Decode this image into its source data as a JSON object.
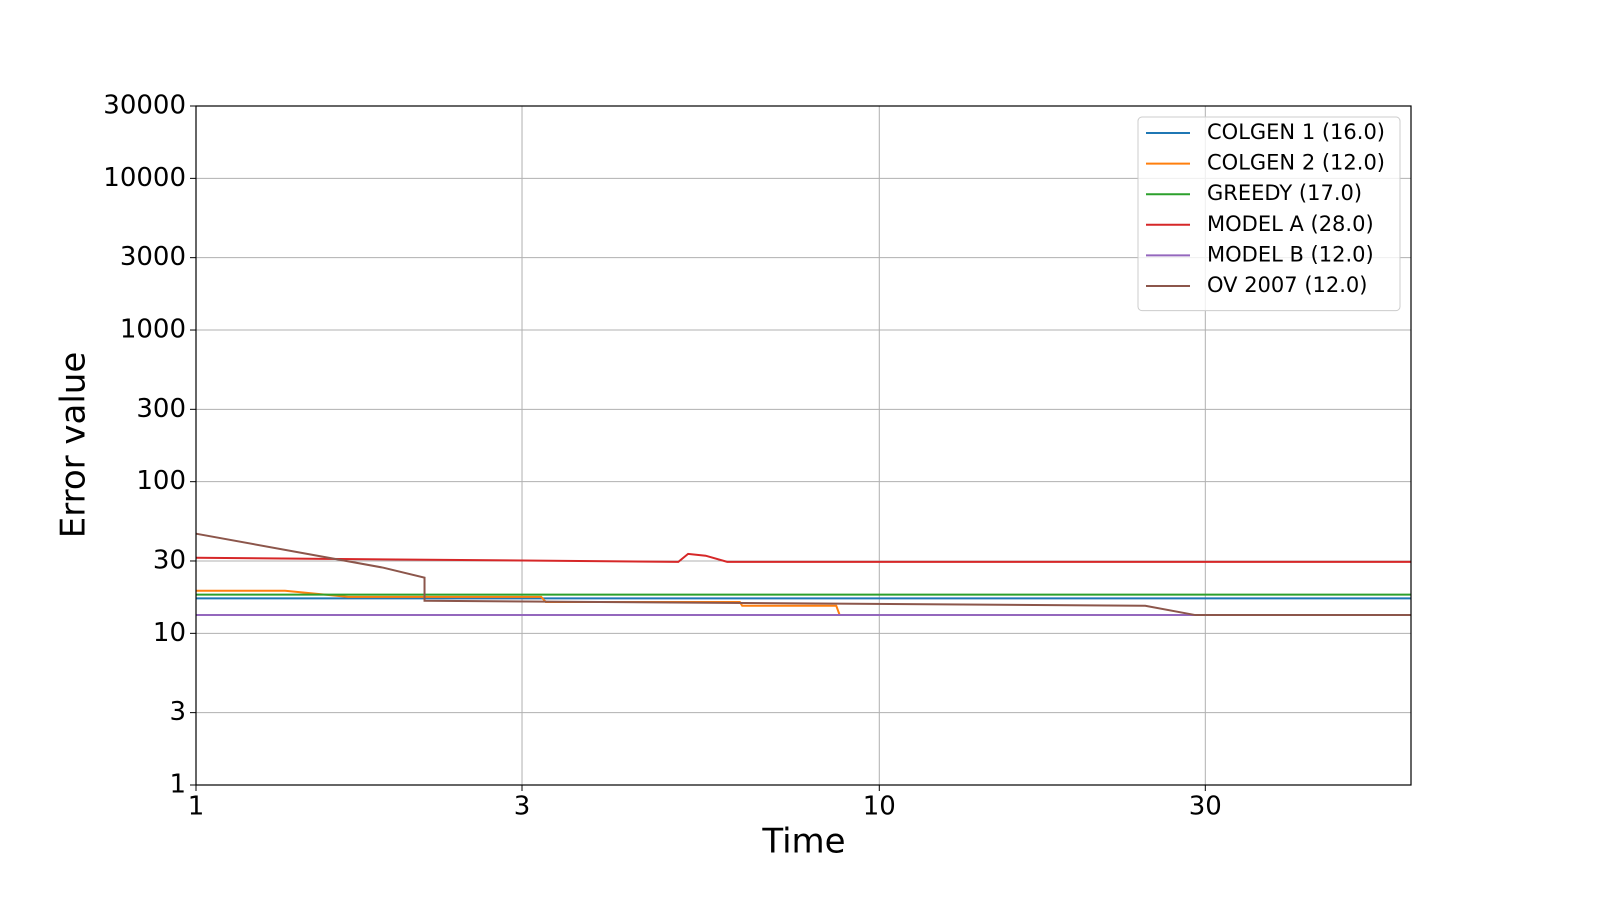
{
  "chart_data": {
    "type": "line",
    "xlabel": "Time",
    "ylabel": "Error value",
    "xscale": "log",
    "yscale": "log",
    "xlim": [
      1,
      60
    ],
    "ylim": [
      1,
      30000
    ],
    "xticks": [
      1,
      3,
      10,
      30
    ],
    "yticks": [
      1,
      3,
      10,
      30,
      100,
      300,
      1000,
      3000,
      10000,
      30000
    ],
    "grid": true,
    "legend": "upper right",
    "series": [
      {
        "name": "COLGEN 1 (16.0)",
        "color": "#1f77b4",
        "x": [
          1,
          60
        ],
        "values": [
          17,
          17
        ]
      },
      {
        "name": "COLGEN 2 (12.0)",
        "color": "#ff7f0e",
        "x": [
          1,
          1.35,
          1.67,
          3.2,
          3.25,
          6.25,
          6.3,
          8.65,
          8.75,
          60
        ],
        "values": [
          19.1,
          19.1,
          17.4,
          17.4,
          16.1,
          16.1,
          15.2,
          15.2,
          13.2,
          13.2
        ]
      },
      {
        "name": "GREEDY (17.0)",
        "color": "#2ca02c",
        "x": [
          1,
          60
        ],
        "values": [
          18,
          18
        ]
      },
      {
        "name": "MODEL A (28.0)",
        "color": "#d62728",
        "x": [
          1,
          5.08,
          5.25,
          5.57,
          5.99,
          60
        ],
        "values": [
          31.5,
          29.6,
          33.4,
          32.5,
          29.6,
          29.6
        ]
      },
      {
        "name": "MODEL B (12.0)",
        "color": "#9467bd",
        "x": [
          1,
          60
        ],
        "values": [
          13.2,
          13.2
        ]
      },
      {
        "name": "OV 2007 (12.0)",
        "color": "#8c564b",
        "x": [
          1,
          1.88,
          2.16,
          2.16,
          24.5,
          29.0,
          60
        ],
        "values": [
          45.4,
          27.1,
          23.3,
          16.4,
          15.2,
          13.2,
          13.2
        ]
      }
    ]
  }
}
